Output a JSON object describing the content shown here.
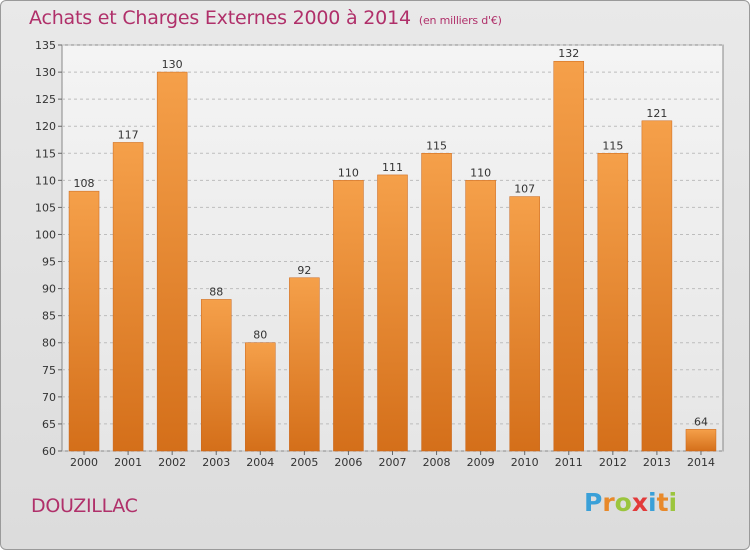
{
  "header": {
    "title": "Achats et Charges Externes 2000 à 2014",
    "subtitle": "(en milliers d'€)"
  },
  "footer": {
    "commune": "DOUZILLAC",
    "logo_letters": [
      "P",
      "r",
      "o",
      "x",
      "i",
      "t",
      "i"
    ],
    "logo_colors": [
      "#3aa0d8",
      "#e8892a",
      "#9bc53d",
      "#e23a3a",
      "#3aa0d8",
      "#e8892a",
      "#9bc53d"
    ]
  },
  "chart_data": {
    "type": "bar",
    "categories": [
      "2000",
      "2001",
      "2002",
      "2003",
      "2004",
      "2005",
      "2006",
      "2007",
      "2008",
      "2009",
      "2010",
      "2011",
      "2012",
      "2013",
      "2014"
    ],
    "values": [
      108,
      117,
      130,
      88,
      80,
      92,
      110,
      111,
      115,
      110,
      107,
      132,
      115,
      121,
      64
    ],
    "title": "Achats et Charges Externes 2000 à 2014",
    "xlabel": "",
    "ylabel": "",
    "ylim": [
      60,
      135
    ],
    "yticks": [
      60,
      65,
      70,
      75,
      80,
      85,
      90,
      95,
      100,
      105,
      110,
      115,
      120,
      125,
      130,
      135
    ],
    "grid": true,
    "bar_color": "#f5a04a",
    "bar_color_dark": "#d46f1a"
  }
}
